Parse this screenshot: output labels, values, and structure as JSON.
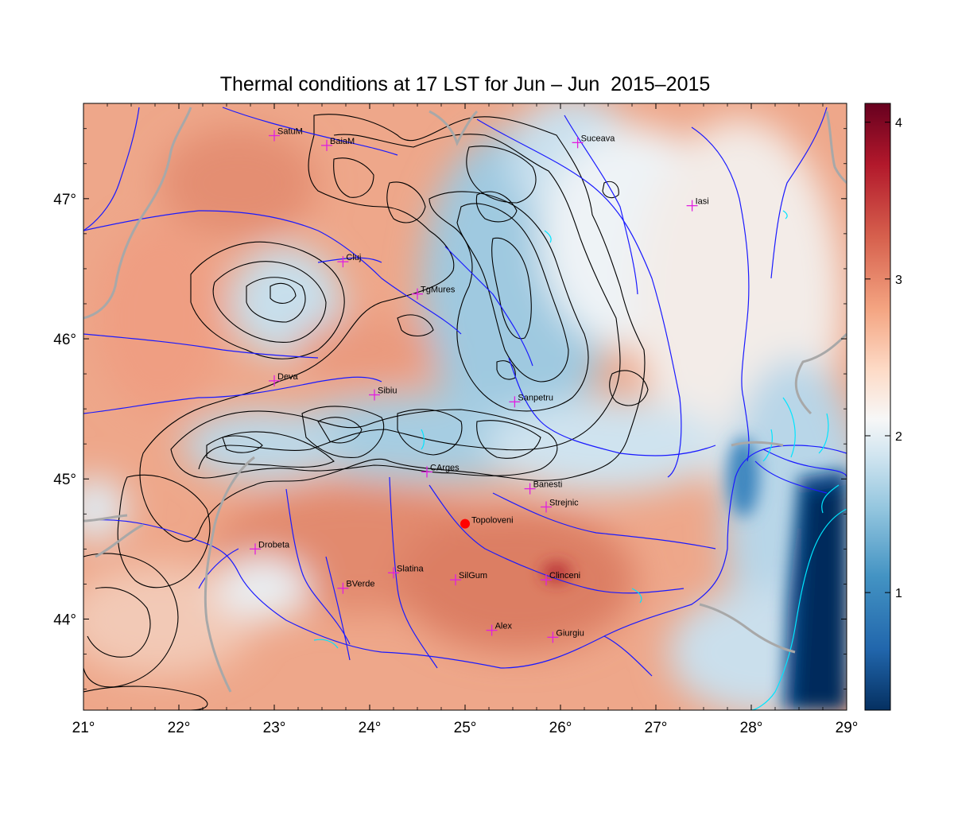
{
  "title": "Thermal conditions at 17 LST for Jun – Jun  2015–2015",
  "map": {
    "lon_range": [
      21,
      29
    ],
    "lat_range": [
      43.35,
      47.68
    ],
    "x_ticks": [
      {
        "value": 21,
        "label": "21°"
      },
      {
        "value": 22,
        "label": "22°"
      },
      {
        "value": 23,
        "label": "23°"
      },
      {
        "value": 24,
        "label": "24°"
      },
      {
        "value": 25,
        "label": "25°"
      },
      {
        "value": 26,
        "label": "26°"
      },
      {
        "value": 27,
        "label": "27°"
      },
      {
        "value": 28,
        "label": "28°"
      },
      {
        "value": 29,
        "label": "29°"
      }
    ],
    "y_ticks": [
      {
        "value": 44,
        "label": "44°"
      },
      {
        "value": 45,
        "label": "45°"
      },
      {
        "value": 46,
        "label": "46°"
      },
      {
        "value": 47,
        "label": "47°"
      }
    ],
    "cities": [
      {
        "name": "SatuM",
        "lon": 23.0,
        "lat": 47.45
      },
      {
        "name": "BaiaM",
        "lon": 23.55,
        "lat": 47.38
      },
      {
        "name": "Suceava",
        "lon": 26.18,
        "lat": 47.4
      },
      {
        "name": "Iasi",
        "lon": 27.38,
        "lat": 46.95
      },
      {
        "name": "Cluj",
        "lon": 23.72,
        "lat": 46.55
      },
      {
        "name": "TgMures",
        "lon": 24.5,
        "lat": 46.32
      },
      {
        "name": "Deva",
        "lon": 23.0,
        "lat": 45.7
      },
      {
        "name": "Sibiu",
        "lon": 24.05,
        "lat": 45.6
      },
      {
        "name": "Sanpetru",
        "lon": 25.52,
        "lat": 45.55
      },
      {
        "name": "CArges",
        "lon": 24.6,
        "lat": 45.05
      },
      {
        "name": "Banesti",
        "lon": 25.68,
        "lat": 44.93
      },
      {
        "name": "Strejnic",
        "lon": 25.85,
        "lat": 44.8
      },
      {
        "name": "Drobeta",
        "lon": 22.8,
        "lat": 44.5
      },
      {
        "name": "Slatina",
        "lon": 24.25,
        "lat": 44.33
      },
      {
        "name": "SilGum",
        "lon": 24.9,
        "lat": 44.28
      },
      {
        "name": "Clinceni",
        "lon": 25.85,
        "lat": 44.28
      },
      {
        "name": "BVerde",
        "lon": 23.72,
        "lat": 44.22
      },
      {
        "name": "Alex",
        "lon": 25.28,
        "lat": 43.92
      },
      {
        "name": "Giurgiu",
        "lon": 25.92,
        "lat": 43.87
      }
    ],
    "highlight_station": {
      "name": "Topoloveni",
      "lon": 25.0,
      "lat": 44.68,
      "color": "#ff0000"
    },
    "marker_color": "#e020e0",
    "river_color": "#1a1aff",
    "border_color": "#a8a8a8",
    "contour_color": "#000000",
    "lake_color": "#00e5ff"
  },
  "colorbar": {
    "min": 0.25,
    "max": 4.12,
    "ticks": [
      {
        "value": 1,
        "label": "1"
      },
      {
        "value": 2,
        "label": "2"
      },
      {
        "value": 3,
        "label": "3"
      },
      {
        "value": 4,
        "label": "4"
      }
    ],
    "colormap": [
      "#053061",
      "#2166ac",
      "#4393c3",
      "#92c5de",
      "#d1e5f0",
      "#f7f7f7",
      "#fddbc7",
      "#f4a582",
      "#d6604d",
      "#b2182b",
      "#67001f"
    ]
  }
}
